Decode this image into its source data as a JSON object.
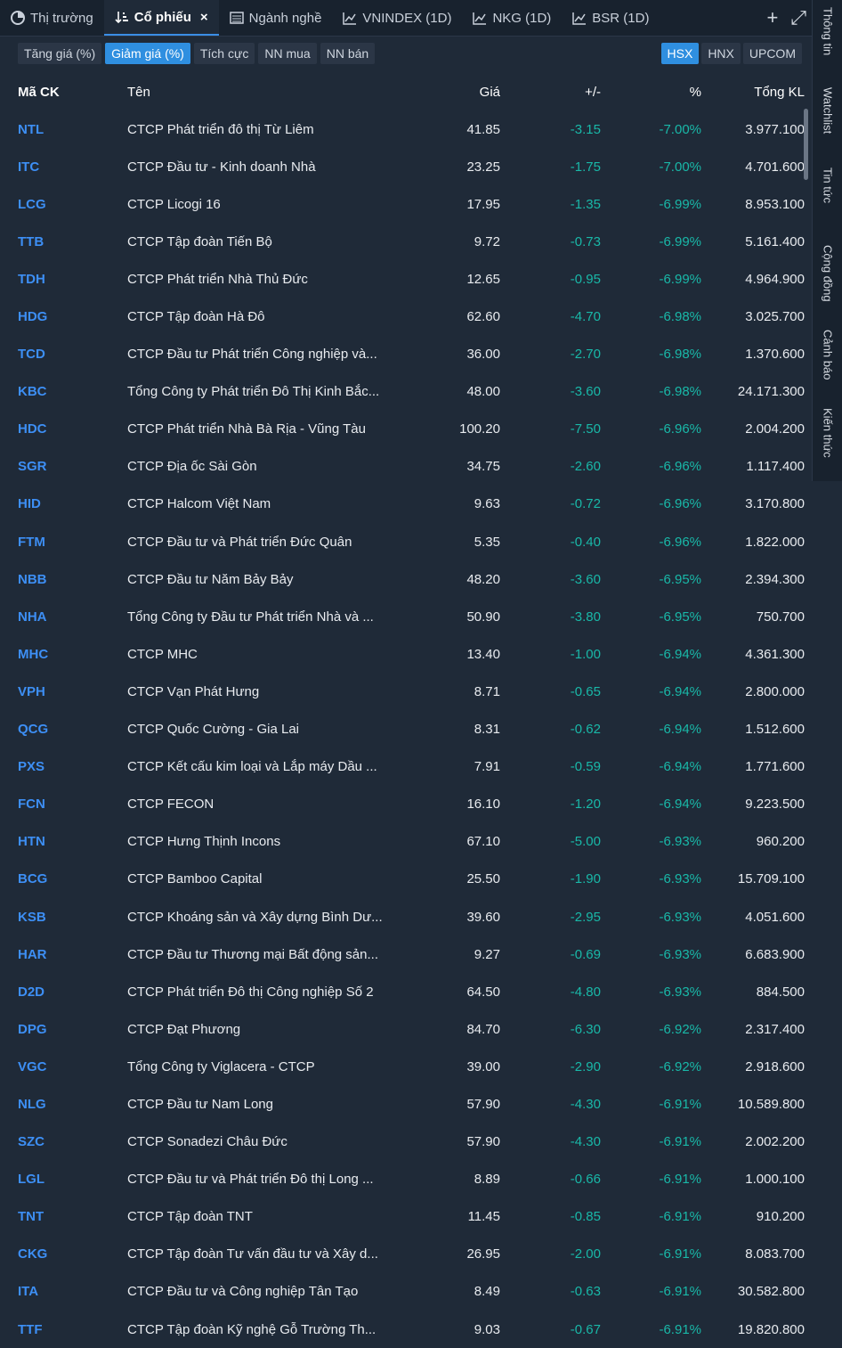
{
  "tabs": [
    {
      "label": "Thị trường",
      "icon": "pie-chart-icon",
      "active": false
    },
    {
      "label": "Cổ phiếu",
      "icon": "sort-icon",
      "active": true,
      "close": "×"
    },
    {
      "label": "Ngành nghề",
      "icon": "list-icon",
      "active": false
    },
    {
      "label": "VNINDEX (1D)",
      "icon": "chart-icon",
      "active": false
    },
    {
      "label": "NKG (1D)",
      "icon": "chart-icon",
      "active": false
    },
    {
      "label": "BSR (1D)",
      "icon": "chart-icon",
      "active": false
    }
  ],
  "tab_tools": {
    "add": "+",
    "expand": "⤢"
  },
  "filters": [
    "Tăng giá (%)",
    "Giảm giá (%)",
    "Tích cực",
    "NN mua",
    "NN bán"
  ],
  "active_filter": "Giảm giá (%)",
  "exchanges": [
    "HSX",
    "HNX",
    "UPCOM"
  ],
  "active_exchange": "HSX",
  "columns": {
    "code": "Mã CK",
    "name": "Tên",
    "price": "Giá",
    "change": "+/-",
    "pct": "%",
    "volume": "Tổng KL"
  },
  "rows": [
    {
      "code": "NTL",
      "name": "CTCP Phát triển đô thị Từ Liêm",
      "price": "41.85",
      "change": "-3.15",
      "pct": "-7.00%",
      "volume": "3.977.100"
    },
    {
      "code": "ITC",
      "name": "CTCP Đầu tư - Kinh doanh Nhà",
      "price": "23.25",
      "change": "-1.75",
      "pct": "-7.00%",
      "volume": "4.701.600"
    },
    {
      "code": "LCG",
      "name": "CTCP Licogi 16",
      "price": "17.95",
      "change": "-1.35",
      "pct": "-6.99%",
      "volume": "8.953.100"
    },
    {
      "code": "TTB",
      "name": "CTCP Tập đoàn Tiến Bộ",
      "price": "9.72",
      "change": "-0.73",
      "pct": "-6.99%",
      "volume": "5.161.400"
    },
    {
      "code": "TDH",
      "name": "CTCP Phát triển Nhà Thủ Đức",
      "price": "12.65",
      "change": "-0.95",
      "pct": "-6.99%",
      "volume": "4.964.900"
    },
    {
      "code": "HDG",
      "name": "CTCP Tập đoàn Hà Đô",
      "price": "62.60",
      "change": "-4.70",
      "pct": "-6.98%",
      "volume": "3.025.700"
    },
    {
      "code": "TCD",
      "name": "CTCP Đầu tư Phát triển Công nghiệp và...",
      "price": "36.00",
      "change": "-2.70",
      "pct": "-6.98%",
      "volume": "1.370.600"
    },
    {
      "code": "KBC",
      "name": "Tổng Công ty Phát triển Đô Thị Kinh Bắc...",
      "price": "48.00",
      "change": "-3.60",
      "pct": "-6.98%",
      "volume": "24.171.300"
    },
    {
      "code": "HDC",
      "name": "CTCP Phát triển Nhà Bà Rịa - Vũng Tàu",
      "price": "100.20",
      "change": "-7.50",
      "pct": "-6.96%",
      "volume": "2.004.200"
    },
    {
      "code": "SGR",
      "name": "CTCP Địa ốc Sài Gòn",
      "price": "34.75",
      "change": "-2.60",
      "pct": "-6.96%",
      "volume": "1.117.400"
    },
    {
      "code": "HID",
      "name": "CTCP Halcom Việt Nam",
      "price": "9.63",
      "change": "-0.72",
      "pct": "-6.96%",
      "volume": "3.170.800"
    },
    {
      "code": "FTM",
      "name": "CTCP Đầu tư và Phát triển Đức Quân",
      "price": "5.35",
      "change": "-0.40",
      "pct": "-6.96%",
      "volume": "1.822.000"
    },
    {
      "code": "NBB",
      "name": "CTCP Đầu tư Năm Bảy Bảy",
      "price": "48.20",
      "change": "-3.60",
      "pct": "-6.95%",
      "volume": "2.394.300"
    },
    {
      "code": "NHA",
      "name": "Tổng Công ty Đầu tư Phát triển Nhà và ...",
      "price": "50.90",
      "change": "-3.80",
      "pct": "-6.95%",
      "volume": "750.700"
    },
    {
      "code": "MHC",
      "name": "CTCP MHC",
      "price": "13.40",
      "change": "-1.00",
      "pct": "-6.94%",
      "volume": "4.361.300"
    },
    {
      "code": "VPH",
      "name": "CTCP Vạn Phát Hưng",
      "price": "8.71",
      "change": "-0.65",
      "pct": "-6.94%",
      "volume": "2.800.000"
    },
    {
      "code": "QCG",
      "name": "CTCP Quốc Cường - Gia Lai",
      "price": "8.31",
      "change": "-0.62",
      "pct": "-6.94%",
      "volume": "1.512.600"
    },
    {
      "code": "PXS",
      "name": "CTCP Kết cấu kim loại và Lắp máy Dầu ...",
      "price": "7.91",
      "change": "-0.59",
      "pct": "-6.94%",
      "volume": "1.771.600"
    },
    {
      "code": "FCN",
      "name": "CTCP FECON",
      "price": "16.10",
      "change": "-1.20",
      "pct": "-6.94%",
      "volume": "9.223.500"
    },
    {
      "code": "HTN",
      "name": "CTCP Hưng Thịnh Incons",
      "price": "67.10",
      "change": "-5.00",
      "pct": "-6.93%",
      "volume": "960.200"
    },
    {
      "code": "BCG",
      "name": "CTCP Bamboo Capital",
      "price": "25.50",
      "change": "-1.90",
      "pct": "-6.93%",
      "volume": "15.709.100"
    },
    {
      "code": "KSB",
      "name": "CTCP Khoáng sản và Xây dựng Bình Dư...",
      "price": "39.60",
      "change": "-2.95",
      "pct": "-6.93%",
      "volume": "4.051.600"
    },
    {
      "code": "HAR",
      "name": "CTCP Đầu tư Thương mại Bất động sản...",
      "price": "9.27",
      "change": "-0.69",
      "pct": "-6.93%",
      "volume": "6.683.900"
    },
    {
      "code": "D2D",
      "name": "CTCP Phát triển Đô thị Công nghiệp Số 2",
      "price": "64.50",
      "change": "-4.80",
      "pct": "-6.93%",
      "volume": "884.500"
    },
    {
      "code": "DPG",
      "name": "CTCP Đạt Phương",
      "price": "84.70",
      "change": "-6.30",
      "pct": "-6.92%",
      "volume": "2.317.400"
    },
    {
      "code": "VGC",
      "name": "Tổng Công ty Viglacera - CTCP",
      "price": "39.00",
      "change": "-2.90",
      "pct": "-6.92%",
      "volume": "2.918.600"
    },
    {
      "code": "NLG",
      "name": "CTCP Đầu tư Nam Long",
      "price": "57.90",
      "change": "-4.30",
      "pct": "-6.91%",
      "volume": "10.589.800"
    },
    {
      "code": "SZC",
      "name": "CTCP Sonadezi Châu Đức",
      "price": "57.90",
      "change": "-4.30",
      "pct": "-6.91%",
      "volume": "2.002.200"
    },
    {
      "code": "LGL",
      "name": "CTCP Đầu tư và Phát triển Đô thị Long ...",
      "price": "8.89",
      "change": "-0.66",
      "pct": "-6.91%",
      "volume": "1.000.100"
    },
    {
      "code": "TNT",
      "name": "CTCP Tập đoàn TNT",
      "price": "11.45",
      "change": "-0.85",
      "pct": "-6.91%",
      "volume": "910.200"
    },
    {
      "code": "CKG",
      "name": "CTCP Tập đoàn Tư vấn đầu tư và Xây d...",
      "price": "26.95",
      "change": "-2.00",
      "pct": "-6.91%",
      "volume": "8.083.700"
    },
    {
      "code": "ITA",
      "name": "CTCP Đầu tư và Công nghiệp Tân Tạo",
      "price": "8.49",
      "change": "-0.63",
      "pct": "-6.91%",
      "volume": "30.582.800"
    },
    {
      "code": "TTF",
      "name": "CTCP Tập đoàn Kỹ nghệ Gỗ Trường Th...",
      "price": "9.03",
      "change": "-0.67",
      "pct": "-6.91%",
      "volume": "19.820.800"
    }
  ],
  "side_tabs": [
    "Thông tin",
    "Watchlist",
    "Tin tức",
    "Cộng đồng",
    "Cảnh báo",
    "Kiến thức"
  ],
  "colors": {
    "down": "#19b8a8",
    "code": "#3d8ff5",
    "accent": "#2f8fe0",
    "background": "#1f2a38"
  }
}
